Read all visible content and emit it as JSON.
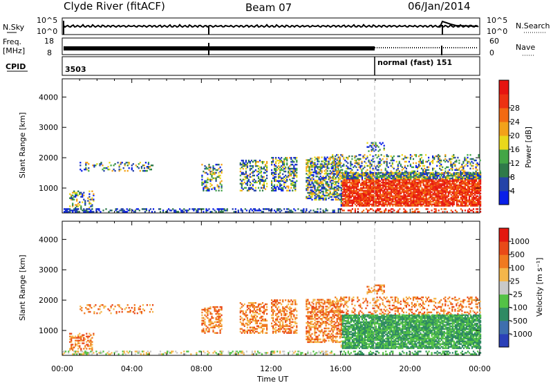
{
  "header": {
    "station": "Clyde River (fitACF)",
    "beam": "Beam 07",
    "date": "06/Jan/2014"
  },
  "top_panels": {
    "nsky_label": "N.Sky",
    "nsky_ticks": [
      "10^5",
      "10^0"
    ],
    "nsearch_label": "N.Search",
    "nsearch_ticks": [
      "10^5",
      "10^0"
    ],
    "freq_label_1": "Freq.",
    "freq_label_2": "[MHz]",
    "freq_ticks": [
      "18",
      "8"
    ],
    "nave_label": "Nave",
    "nave_ticks": [
      "60",
      "0"
    ],
    "cpid_label": "CPID",
    "cpid_start": "3503",
    "cpid_change": "normal (fast) 151",
    "cpid_change_hour": 18.0
  },
  "chart_data": [
    {
      "type": "heatmap",
      "name": "power",
      "xlabel": "",
      "ylabel": "Slant Range [km]",
      "xlim": [
        0,
        24
      ],
      "ylim": [
        180,
        4600
      ],
      "yticks": [
        "1000",
        "2000",
        "3000",
        "4000"
      ],
      "colorbar": {
        "label": "Power [dB]",
        "ticks": [
          "4",
          "8",
          "12",
          "16",
          "20",
          "24",
          "28"
        ],
        "range": [
          0,
          32
        ],
        "colors": [
          "#0a1fe8",
          "#2543a8",
          "#2f7a4a",
          "#43a646",
          "#e9d81c",
          "#f3a21a",
          "#f26a12",
          "#ec3212",
          "#e61410"
        ]
      }
    },
    {
      "type": "heatmap",
      "name": "velocity",
      "xlabel": "Time UT",
      "ylabel": "Slant Range [km]",
      "xlim": [
        0,
        24
      ],
      "ylim": [
        180,
        4600
      ],
      "yticks": [
        "1000",
        "2000",
        "3000",
        "4000"
      ],
      "xticks": [
        "00:00",
        "04:00",
        "08:00",
        "12:00",
        "16:00",
        "20:00",
        "00:00"
      ],
      "colorbar": {
        "label": "Velocity [m s⁻¹]",
        "ticks": [
          "1000",
          "500",
          "100",
          "25",
          "-25",
          "-100",
          "-500",
          "-1000"
        ],
        "colors": [
          "#2a40b8",
          "#3e6fae",
          "#2f8a63",
          "#54c246",
          "#c9c9c9",
          "#f4b64a",
          "#f07a20",
          "#e94a18",
          "#e31810"
        ]
      }
    }
  ]
}
